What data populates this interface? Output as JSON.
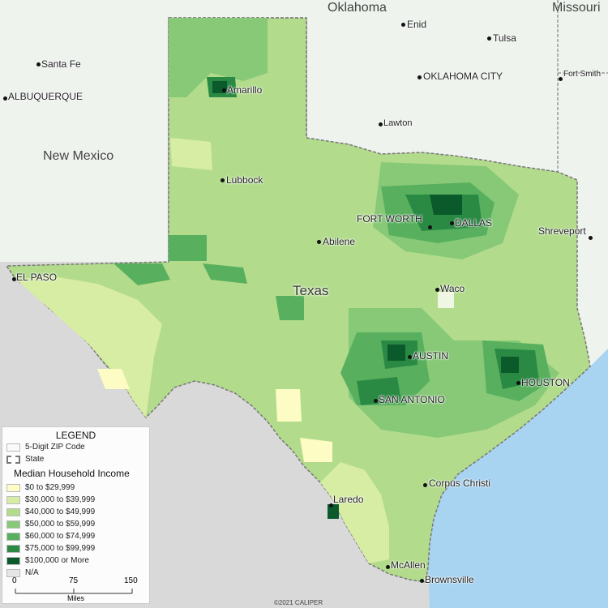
{
  "regions": {
    "oklahoma": "Oklahoma",
    "missouri": "Missouri",
    "new_mexico": "New Mexico",
    "texas": "Texas"
  },
  "cities": {
    "enid": "Enid",
    "tulsa": "Tulsa",
    "santa_fe": "Santa Fe",
    "albuquerque": "ALBUQUERQUE",
    "oklahoma_city": "OKLAHOMA CITY",
    "fort_smith": "Fort Smith",
    "amarillo": "Amarillo",
    "lawton": "Lawton",
    "lubbock": "Lubbock",
    "fort_worth": "FORT WORTH",
    "dallas": "DALLAS",
    "shreveport": "Shreveport",
    "abilene": "Abilene",
    "el_paso": "EL PASO",
    "waco": "Waco",
    "austin": "AUSTIN",
    "houston": "HOUSTON",
    "san_antonio": "SAN ANTONIO",
    "corpus_christi": "Corpus Christi",
    "laredo": "Laredo",
    "mcallen": "McAllen",
    "brownsville": "Brownsville"
  },
  "legend": {
    "title": "LEGEND",
    "zip_label": "5-Digit ZIP Code",
    "state_label": "State",
    "income_title": "Median Household Income",
    "classes": [
      {
        "label": "$0 to $29,999",
        "color": "#fcfcc4"
      },
      {
        "label": "$30,000 to $39,999",
        "color": "#d8eda4"
      },
      {
        "label": "$40,000 to $49,999",
        "color": "#b2dc8c"
      },
      {
        "label": "$50,000 to $59,999",
        "color": "#88c978"
      },
      {
        "label": "$60,000 to $74,999",
        "color": "#58b05e"
      },
      {
        "label": "$75,000 to $99,999",
        "color": "#2a8a44"
      },
      {
        "label": "$100,000 or More",
        "color": "#0b5a2c"
      },
      {
        "label": "N/A",
        "color": "#e6e6e6"
      }
    ]
  },
  "scale": {
    "ticks": [
      "0",
      "75",
      "150"
    ],
    "unit": "Miles"
  },
  "copyright": "©2021 CALIPER",
  "colors": {
    "water": "#a8d4f2",
    "mexico": "#d9d9d9",
    "neighbor_states": "#eef3ee",
    "texas_base": "#b2dc8c"
  }
}
